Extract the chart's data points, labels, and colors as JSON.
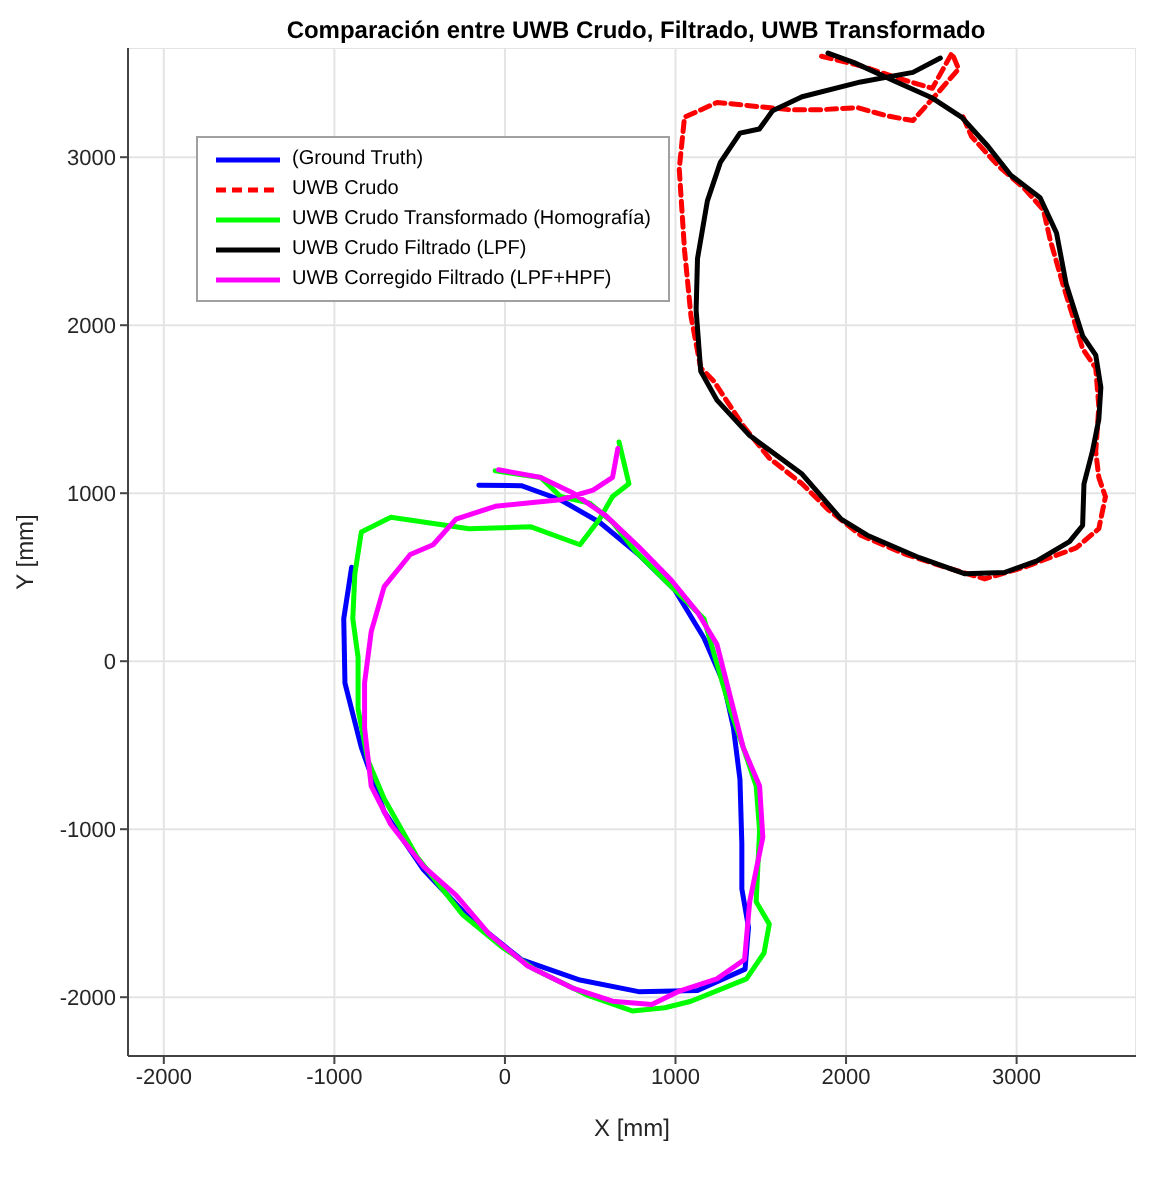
{
  "chart_data": {
    "type": "line",
    "title": "Comparación entre UWB Crudo, Filtrado, UWB Transformado",
    "xlabel": "X [mm]",
    "ylabel": "Y [mm]",
    "xlim": [
      -2210,
      3700
    ],
    "ylim": [
      -2350,
      3650
    ],
    "xticks": [
      -2000,
      -1000,
      0,
      1000,
      2000,
      3000
    ],
    "yticks": [
      -2000,
      -1000,
      0,
      1000,
      2000,
      3000
    ],
    "grid": true,
    "legend": "top left",
    "marker": "none",
    "series": [
      {
        "name": "(Ground Truth)",
        "color": "#0000ff",
        "line_style": "solid",
        "x": [
          -153,
          96,
          325,
          555,
          784,
          995,
          1167,
          1282,
          1340,
          1378,
          1389,
          1389,
          1428,
          1408,
          1129,
          784,
          440,
          96,
          -210,
          -478,
          -708,
          -842,
          -938,
          -945,
          -899
        ],
        "values": [
          1048,
          1045,
          961,
          827,
          635,
          425,
          138,
          -130,
          -398,
          -704,
          -1087,
          -1355,
          -1584,
          -1833,
          -1960,
          -1967,
          -1898,
          -1776,
          -1527,
          -1240,
          -896,
          -513,
          -130,
          253,
          559
        ]
      },
      {
        "name": "UWB Crudo",
        "color": "#ff0000",
        "line_style": "dashed",
        "x": [
          1856,
          2086,
          2316,
          2506,
          2621,
          2660,
          2545,
          2392,
          2239,
          2067,
          1856,
          1665,
          1244,
          1053,
          1022,
          1053,
          1091,
          1148,
          1224,
          1397,
          1550,
          1742,
          1894,
          2086,
          2353,
          2583,
          2813,
          3043,
          3349,
          3482,
          3521,
          3482,
          3464,
          3482,
          3464,
          3387,
          3330,
          3272,
          3196,
          3157,
          3043,
          2890,
          2736,
          2679
        ],
        "values": [
          3601,
          3544,
          3467,
          3410,
          3620,
          3525,
          3391,
          3218,
          3246,
          3295,
          3283,
          3283,
          3326,
          3238,
          2931,
          2446,
          2052,
          1745,
          1668,
          1401,
          1209,
          1056,
          903,
          750,
          635,
          559,
          490,
          559,
          674,
          789,
          979,
          1094,
          1247,
          1515,
          1745,
          1860,
          2052,
          2242,
          2511,
          2687,
          2816,
          2951,
          3123,
          3257
        ]
      },
      {
        "name": "UWB Crudo Transformado (Homografía)",
        "color": "#00ff00",
        "line_style": "solid",
        "x": [
          -57,
          210,
          325,
          497,
          631,
          766,
          938,
          1053,
          1167,
          1243,
          1320,
          1397,
          1473,
          1493,
          1473,
          1550,
          1519,
          1416,
          1091,
          938,
          746,
          479,
          172,
          -20,
          -249,
          -517,
          -708,
          -804,
          -861,
          -861,
          -892,
          -880,
          -842,
          -669,
          -210,
          153,
          440,
          555,
          631,
          727,
          669
        ],
        "values": [
          1133,
          1094,
          980,
          941,
          827,
          654,
          482,
          367,
          253,
          -15,
          -284,
          -513,
          -743,
          -1010,
          -1432,
          -1565,
          -1737,
          -1891,
          -2024,
          -2063,
          -2082,
          -1986,
          -1833,
          -1699,
          -1508,
          -1163,
          -819,
          -589,
          -284,
          23,
          253,
          520,
          769,
          857,
          788,
          800,
          693,
          846,
          980,
          1056,
          1305
        ]
      },
      {
        "name": "UWB Crudo Filtrado (LPF)",
        "color": "#000000",
        "line_style": "solid",
        "x": [
          2553,
          2392,
          2086,
          1742,
          1569,
          1492,
          1378,
          1263,
          1187,
          1129,
          1121,
          1148,
          1243,
          1435,
          1742,
          1971,
          2124,
          2430,
          2698,
          2928,
          3119,
          3310,
          3387,
          3395,
          3444,
          3482,
          3494,
          3464,
          3387,
          3291,
          3234,
          3138,
          2966,
          2832,
          2679,
          2506,
          2296,
          2047,
          1894
        ],
        "values": [
          3590,
          3505,
          3448,
          3360,
          3276,
          3168,
          3143,
          2969,
          2740,
          2396,
          2090,
          1726,
          1554,
          1343,
          1114,
          846,
          750,
          616,
          520,
          528,
          597,
          712,
          808,
          1056,
          1247,
          1439,
          1630,
          1822,
          1937,
          2243,
          2549,
          2759,
          2893,
          3065,
          3237,
          3352,
          3448,
          3563,
          3620
        ]
      },
      {
        "name": "UWB Corregido Filtrado (LPF+HPF)",
        "color": "#ff00ff",
        "line_style": "solid",
        "x": [
          -38,
          210,
          402,
          593,
          784,
          976,
          1129,
          1243,
          1320,
          1397,
          1493,
          1512,
          1435,
          1405,
          1243,
          1014,
          861,
          631,
          402,
          134,
          -95,
          -287,
          -478,
          -669,
          -784,
          -823,
          -823,
          -784,
          -708,
          -555,
          -421,
          -287,
          -57,
          325,
          517,
          631,
          662
        ],
        "values": [
          1140,
          1094,
          999,
          865,
          681,
          482,
          291,
          100,
          -207,
          -513,
          -743,
          -1048,
          -1432,
          -1776,
          -1891,
          -1967,
          -2044,
          -2024,
          -1948,
          -1814,
          -1622,
          -1393,
          -1221,
          -972,
          -743,
          -398,
          -130,
          176,
          444,
          635,
          693,
          846,
          922,
          961,
          1018,
          1094,
          1266
        ]
      }
    ]
  }
}
